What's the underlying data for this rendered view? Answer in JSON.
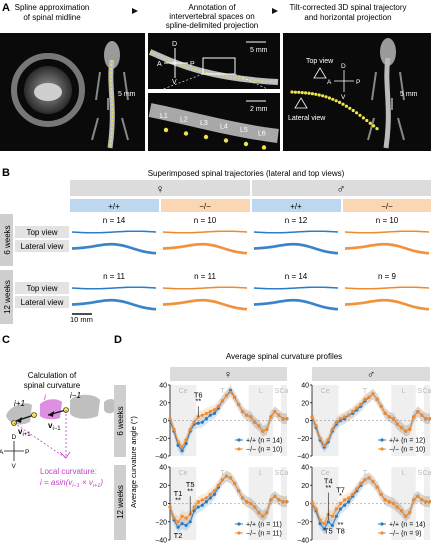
{
  "panelA": {
    "letter": "A",
    "title1": "Spline approximation",
    "title1b": "of spinal midline",
    "title2": "Annotation of",
    "title2b": "intervertebral spaces on",
    "title2c": "spline-delimited projection",
    "title3": "Tilt-corrected 3D spinal trajectory",
    "title3b": "and horizontal projection",
    "scale_5mm": "5 mm",
    "scale_2mm": "2 mm",
    "axes": {
      "d": "D",
      "v": "V",
      "a": "A",
      "p": "P"
    },
    "labels": [
      "L1",
      "L2",
      "L3",
      "L4",
      "L5",
      "L6"
    ],
    "top_view": "Top view",
    "lateral_view": "Lateral view"
  },
  "panelB": {
    "letter": "B",
    "title": "Superimposed spinal trajectories (lateral and top views)",
    "female": "♀",
    "male": "♂",
    "geno_wt": "+/+",
    "geno_ko": "−/−",
    "row6": "6 weeks",
    "row12": "12 weeks",
    "top_view": "Top view",
    "lateral_view": "Lateral view",
    "n6": [
      "n = 14",
      "n = 10",
      "n = 12",
      "n = 10"
    ],
    "n12": [
      "n = 11",
      "n = 11",
      "n = 14",
      "n = 9"
    ],
    "scale": "10 mm",
    "color_wt": "#2a7bc4",
    "color_ko": "#f08a2e"
  },
  "panelC": {
    "letter": "C",
    "title1": "Calculation of",
    "title2": "spinal curvature",
    "i_plus": "i+1",
    "i": "i",
    "i_minus": "i−1",
    "v_plus": "v",
    "v_plus_sub": "i+1",
    "v_minus": "v",
    "v_minus_sub": "i−1",
    "axes": {
      "d": "D",
      "v": "V",
      "a": "A",
      "p": "P"
    },
    "local1": "Local curvature:",
    "local2": "i = asin(v",
    "local2_sub1": "i−1",
    "local2_mid": " × v",
    "local2_sub2": "i+1",
    "local2_end": ")",
    "accent": "#c43fc8"
  },
  "panelD": {
    "letter": "D",
    "title": "Average spinal curvature profiles",
    "female": "♀",
    "male": "♂",
    "ylabel": "Average curvature angle (°)",
    "row6": "6 weeks",
    "row12": "12 weeks",
    "regions": [
      "Ce",
      "T",
      "L",
      "S",
      "Ca"
    ],
    "yticks": [
      "40",
      "20",
      "0",
      "−20",
      "−40"
    ],
    "legend": {
      "f6": [
        "+/+ (n = 14)",
        "−/− (n = 10)"
      ],
      "m6": [
        "+/+ (n = 12)",
        "−/− (n = 10)"
      ],
      "f12": [
        "+/+ (n = 11)",
        "−/− (n = 11)"
      ],
      "m12": [
        "+/+ (n = 14)",
        "−/− (n = 9)"
      ]
    },
    "annotations": {
      "f6": [
        "T6",
        "**"
      ],
      "f12": [
        "T1",
        "**",
        "T5",
        "**",
        "T2"
      ],
      "m12": [
        "T4",
        "**",
        "T7",
        "*",
        "T5",
        "T8",
        "**"
      ]
    }
  },
  "chart_data": [
    {
      "type": "line",
      "title": "♀ 6 weeks",
      "ylabel": "Average curvature angle (°)",
      "ylim": [
        -40,
        40
      ],
      "x": [
        1,
        2,
        3,
        4,
        5,
        6,
        7,
        8,
        9,
        10,
        11,
        12,
        13,
        14,
        15,
        16,
        17,
        18,
        19,
        20,
        21,
        22,
        23,
        24,
        25,
        26,
        27,
        28,
        29,
        30
      ],
      "series": [
        {
          "name": "+/+ (n = 14)",
          "values": [
            0,
            -12,
            -28,
            -34,
            -26,
            -12,
            -4,
            -3,
            -2,
            2,
            6,
            8,
            14,
            22,
            28,
            34,
            26,
            18,
            10,
            6,
            4,
            -2,
            -6,
            -12,
            -10,
            4,
            10,
            6,
            2,
            2
          ]
        },
        {
          "name": "−/− (n = 10)",
          "values": [
            2,
            -10,
            -24,
            -30,
            -22,
            -10,
            -2,
            4,
            6,
            8,
            10,
            12,
            16,
            22,
            28,
            32,
            26,
            18,
            10,
            6,
            4,
            -2,
            -6,
            -12,
            -10,
            4,
            10,
            6,
            2,
            2
          ]
        }
      ]
    },
    {
      "type": "line",
      "title": "♂ 6 weeks",
      "ylabel": "Average curvature angle (°)",
      "ylim": [
        -40,
        40
      ],
      "x": [
        1,
        2,
        3,
        4,
        5,
        6,
        7,
        8,
        9,
        10,
        11,
        12,
        13,
        14,
        15,
        16,
        17,
        18,
        19,
        20,
        21,
        22,
        23,
        24,
        25,
        26,
        27,
        28,
        29,
        30
      ],
      "series": [
        {
          "name": "+/+ (n = 12)",
          "values": [
            4,
            -8,
            -22,
            -30,
            -24,
            -12,
            -4,
            0,
            2,
            6,
            8,
            12,
            16,
            22,
            26,
            30,
            24,
            16,
            8,
            4,
            2,
            -4,
            -8,
            -12,
            -10,
            4,
            10,
            6,
            2,
            2
          ]
        },
        {
          "name": "−/− (n = 10)",
          "values": [
            4,
            -6,
            -20,
            -28,
            -22,
            -10,
            -2,
            2,
            4,
            6,
            10,
            14,
            18,
            24,
            26,
            30,
            24,
            16,
            8,
            4,
            2,
            -4,
            -8,
            -12,
            -10,
            4,
            10,
            6,
            2,
            2
          ]
        }
      ]
    },
    {
      "type": "line",
      "title": "♀ 12 weeks",
      "ylabel": "Average curvature angle (°)",
      "ylim": [
        -40,
        40
      ],
      "x": [
        1,
        2,
        3,
        4,
        5,
        6,
        7,
        8,
        9,
        10,
        11,
        12,
        13,
        14,
        15,
        16,
        17,
        18,
        19,
        20,
        21,
        22,
        23,
        24,
        25,
        26,
        27,
        28,
        29,
        30
      ],
      "series": [
        {
          "name": "+/+ (n = 11)",
          "values": [
            -4,
            -18,
            -26,
            -22,
            -24,
            -20,
            -8,
            -4,
            -2,
            2,
            6,
            10,
            18,
            26,
            30,
            28,
            22,
            14,
            6,
            2,
            0,
            -4,
            -10,
            -14,
            -10,
            4,
            8,
            4,
            2,
            2
          ]
        },
        {
          "name": "−/− (n = 11)",
          "values": [
            -4,
            -16,
            -20,
            -14,
            -16,
            -12,
            -4,
            2,
            4,
            6,
            10,
            14,
            20,
            26,
            30,
            28,
            22,
            14,
            6,
            2,
            0,
            -4,
            -10,
            -14,
            -10,
            4,
            8,
            4,
            2,
            2
          ]
        }
      ]
    },
    {
      "type": "line",
      "title": "♂ 12 weeks",
      "ylabel": "Average curvature angle (°)",
      "ylim": [
        -40,
        40
      ],
      "x": [
        1,
        2,
        3,
        4,
        5,
        6,
        7,
        8,
        9,
        10,
        11,
        12,
        13,
        14,
        15,
        16,
        17,
        18,
        19,
        20,
        21,
        22,
        23,
        24,
        25,
        26,
        27,
        28,
        29,
        30
      ],
      "series": [
        {
          "name": "+/+ (n = 14)",
          "values": [
            0,
            -8,
            -22,
            -28,
            -20,
            -24,
            -14,
            -6,
            -2,
            2,
            8,
            14,
            20,
            26,
            28,
            24,
            18,
            10,
            4,
            2,
            0,
            -4,
            -8,
            -14,
            -10,
            4,
            8,
            4,
            2,
            2
          ]
        },
        {
          "name": "−/− (n = 9)",
          "values": [
            0,
            -6,
            -18,
            -22,
            -12,
            -14,
            -6,
            0,
            4,
            6,
            10,
            16,
            22,
            26,
            28,
            24,
            18,
            10,
            4,
            2,
            0,
            -4,
            -8,
            -14,
            -10,
            4,
            8,
            4,
            2,
            2
          ]
        }
      ]
    }
  ]
}
